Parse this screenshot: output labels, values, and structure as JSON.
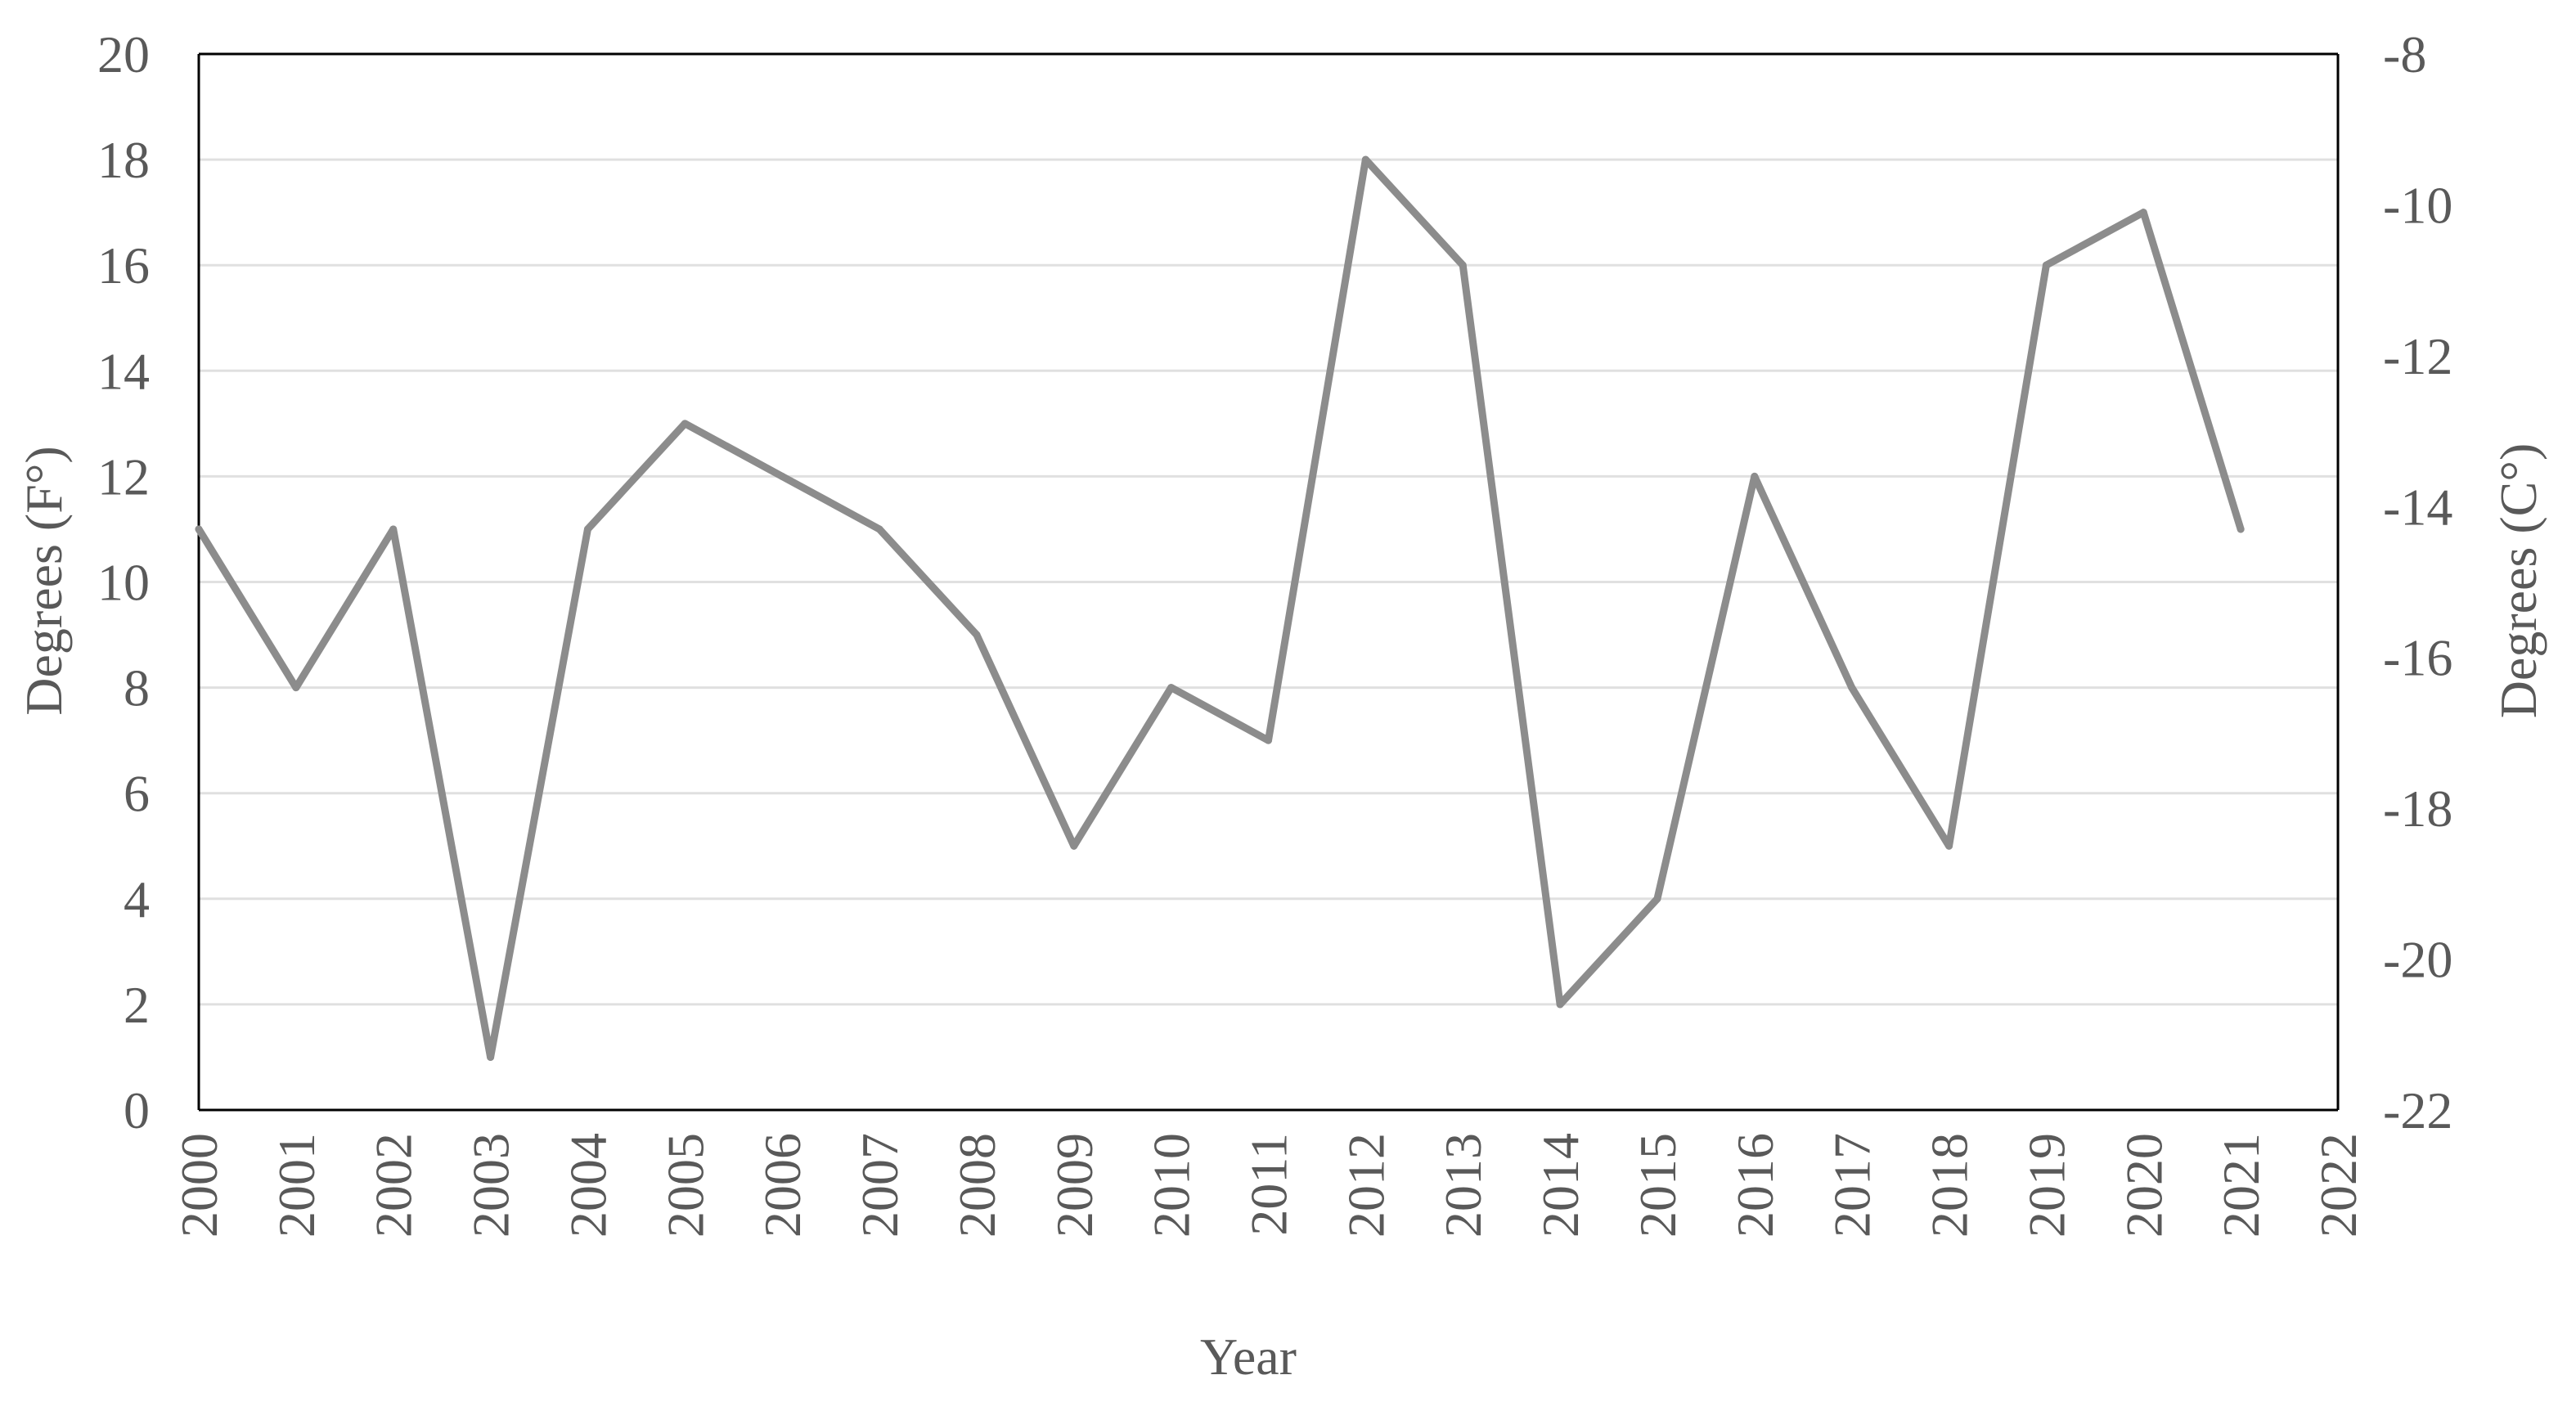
{
  "chart_data": {
    "type": "line",
    "xlabel": "Year",
    "ylabel": "Degrees (F°)",
    "y2label": "Degrees (C°)",
    "categories": [
      "2000",
      "2001",
      "2002",
      "2003",
      "2004",
      "2005",
      "2006",
      "2007",
      "2008",
      "2009",
      "2010",
      "2011",
      "2012",
      "2013",
      "2014",
      "2015",
      "2016",
      "2017",
      "2018",
      "2019",
      "2020",
      "2021",
      "2022"
    ],
    "series": [
      {
        "values": [
          11,
          8,
          11,
          1,
          11,
          13,
          12,
          11,
          9,
          5,
          8,
          7,
          18,
          16,
          2,
          4,
          12,
          8,
          5,
          16,
          17,
          11,
          null
        ]
      }
    ],
    "ylim": [
      0,
      20
    ],
    "yticks": [
      "0",
      "2",
      "4",
      "6",
      "8",
      "10",
      "12",
      "14",
      "16",
      "18",
      "20"
    ],
    "y2lim": [
      -22,
      -8
    ],
    "y2ticks": [
      "-22",
      "-20",
      "-18",
      "-16",
      "-14",
      "-12",
      "-10",
      "-8"
    ],
    "grid": true,
    "legend": "none",
    "colors": {
      "line": "#8c8c8c",
      "grid": "#e0e0e0",
      "axis": "#000000",
      "text": "#595959"
    }
  }
}
